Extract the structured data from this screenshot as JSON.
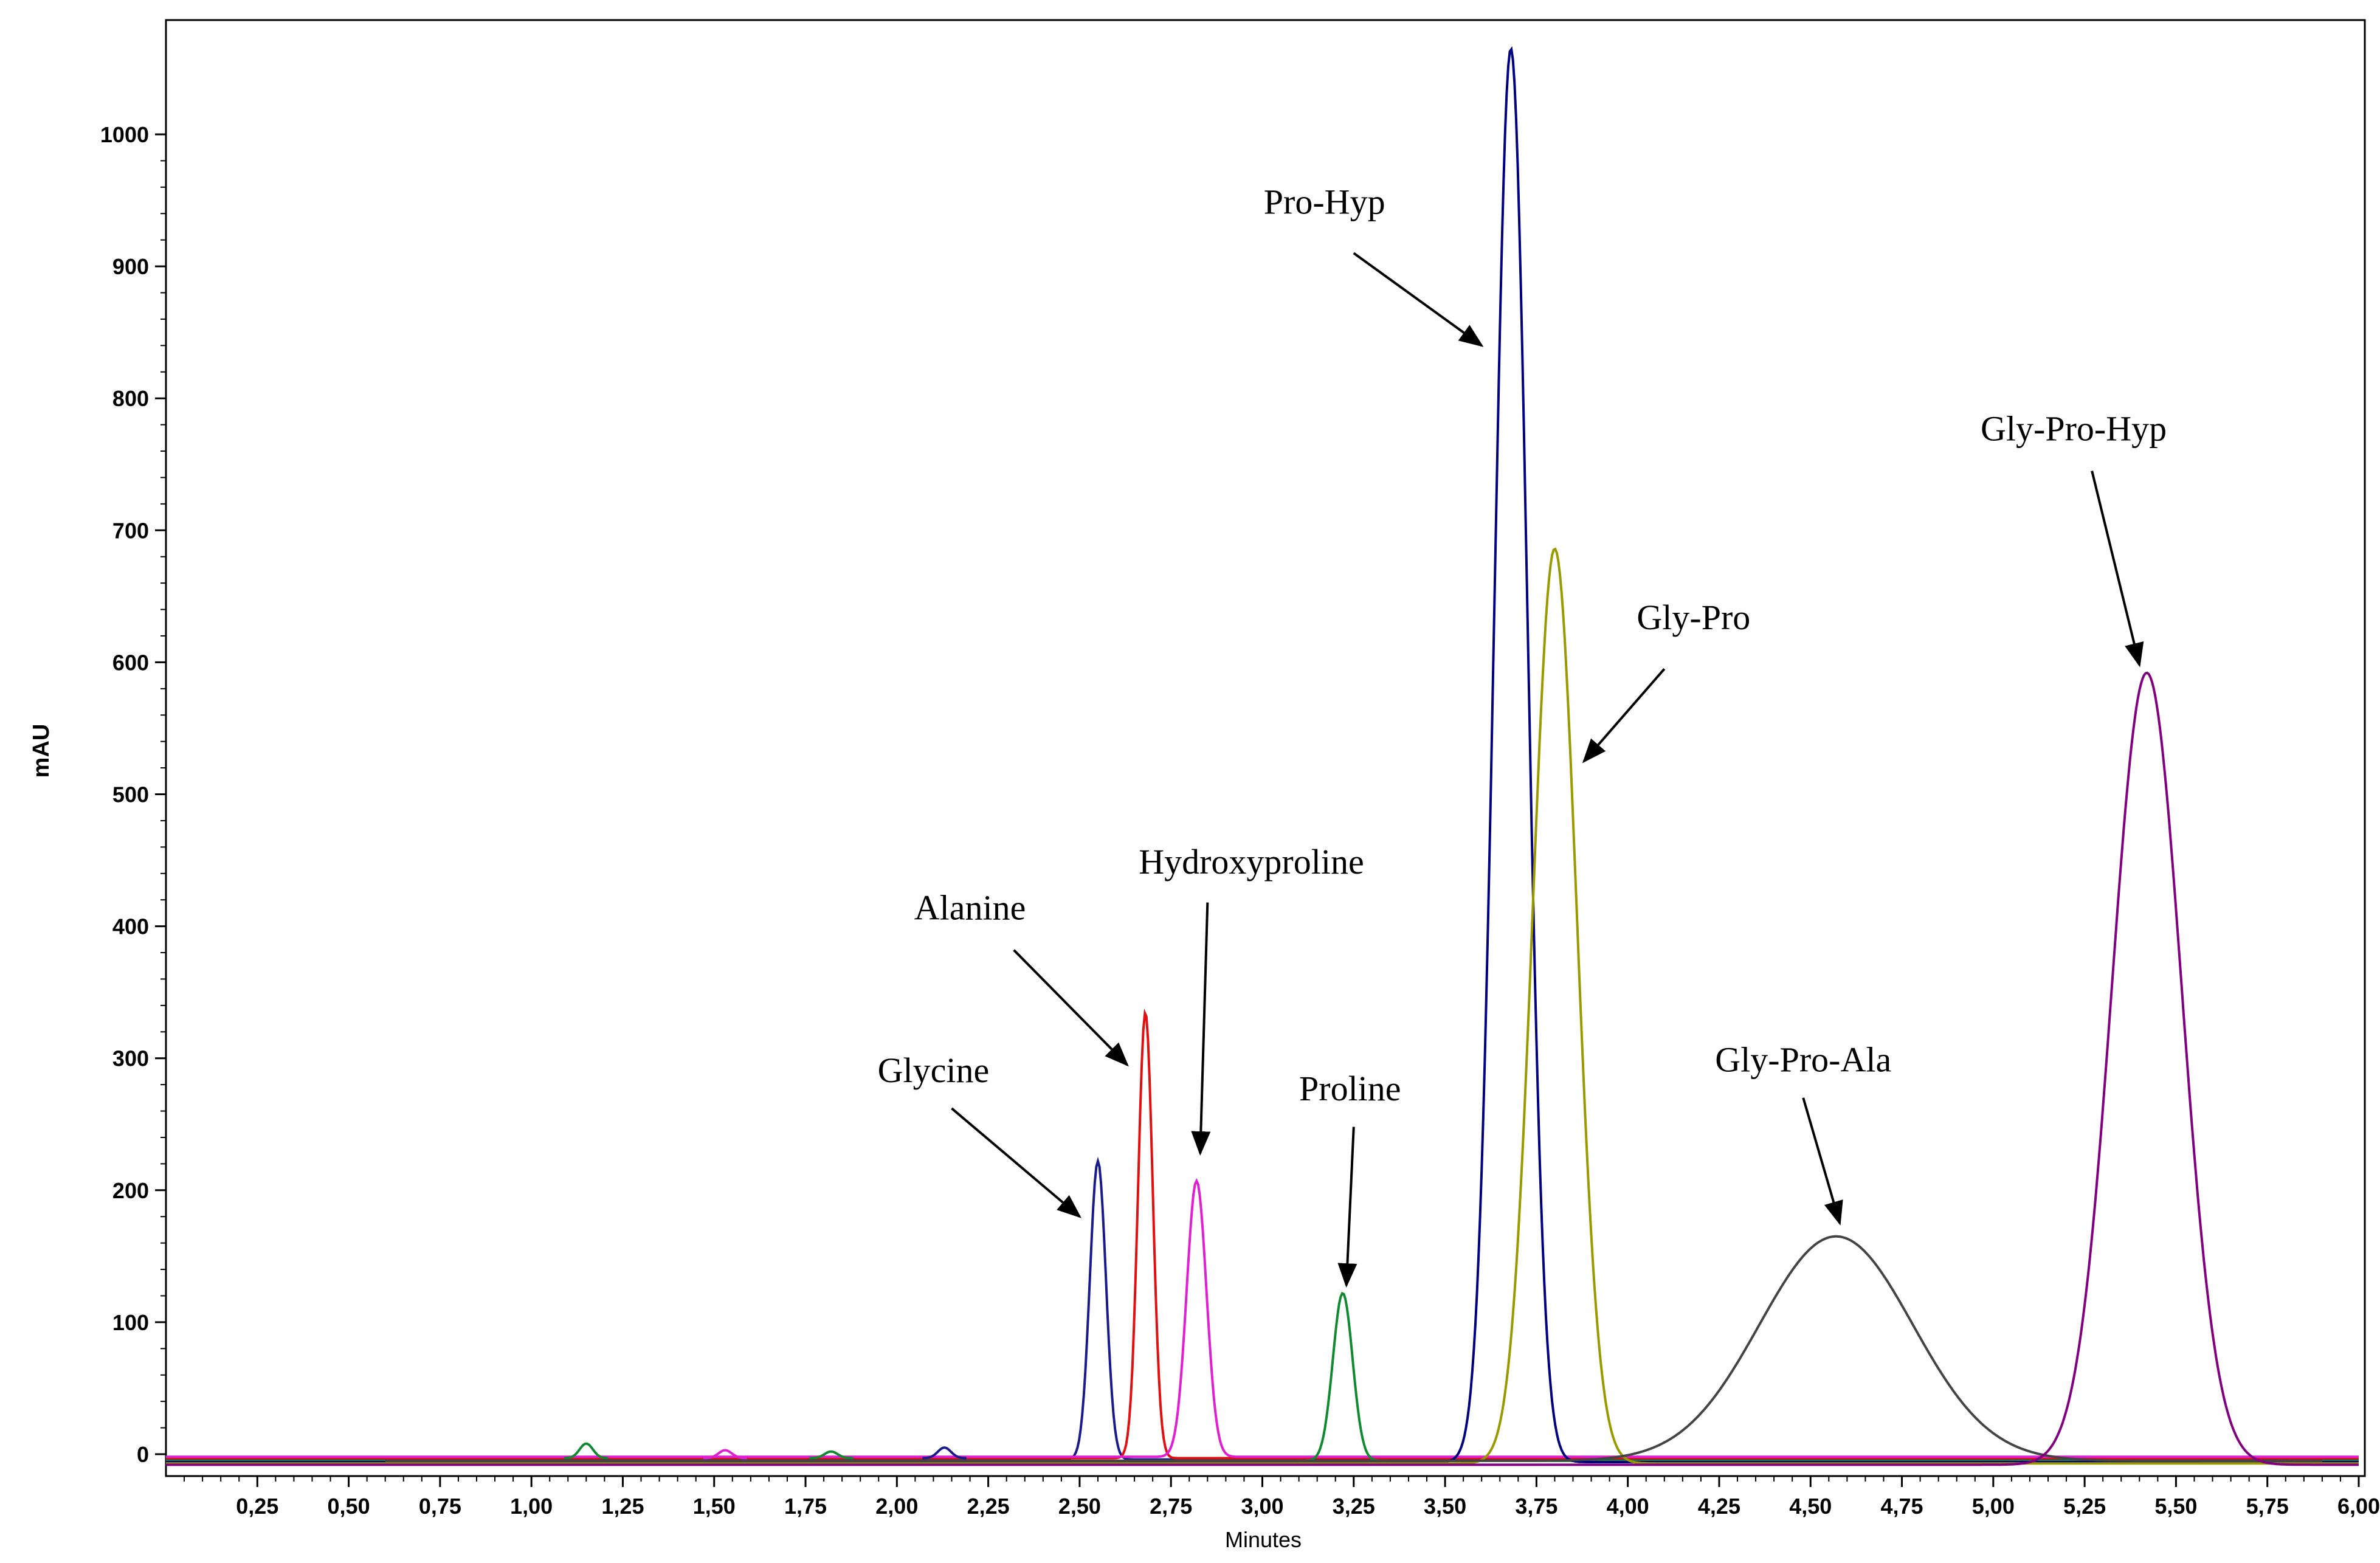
{
  "chart_data": {
    "type": "line",
    "title": "",
    "xlabel": "Minutes",
    "ylabel": "mAU",
    "xlim": [
      0,
      6.0
    ],
    "ylim": [
      -20,
      1080
    ],
    "grid": false,
    "legend": "none",
    "x_ticks": [
      0.25,
      0.5,
      0.75,
      1.0,
      1.25,
      1.5,
      1.75,
      2.0,
      2.25,
      2.5,
      2.75,
      3.0,
      3.25,
      3.5,
      3.75,
      4.0,
      4.25,
      4.5,
      4.75,
      5.0,
      5.25,
      5.5,
      5.75,
      6.0
    ],
    "x_tick_labels": [
      "0,25",
      "0,50",
      "0,75",
      "1,00",
      "1,25",
      "1,50",
      "1,75",
      "2,00",
      "2,25",
      "2,50",
      "2,75",
      "3,00",
      "3,25",
      "3,50",
      "3,75",
      "4,00",
      "4,25",
      "4,50",
      "4,75",
      "5,00",
      "5,25",
      "5,50",
      "5,75",
      "6,00"
    ],
    "y_ticks": [
      0,
      100,
      200,
      300,
      400,
      500,
      600,
      700,
      800,
      900,
      1000
    ],
    "y_tick_labels": [
      "0",
      "100",
      "200",
      "300",
      "400",
      "500",
      "600",
      "700",
      "800",
      "900",
      "1000"
    ],
    "series": [
      {
        "color": "#1a1a8c",
        "peak_x": 2.55,
        "peak_y": 222,
        "width": 0.022,
        "baseline": -4,
        "x_start": 0,
        "x_end": 6.0
      },
      {
        "color": "#e01010",
        "peak_x": 2.68,
        "peak_y": 335,
        "width": 0.02,
        "baseline": -3,
        "x_start": 0,
        "x_end": 6.0
      },
      {
        "color": "#e020d0",
        "peak_x": 2.82,
        "peak_y": 207,
        "width": 0.027,
        "baseline": -2,
        "x_start": 0,
        "x_end": 6.0
      },
      {
        "color": "#108a30",
        "peak_x": 3.22,
        "peak_y": 122,
        "width": 0.027,
        "baseline": -5,
        "x_start": 0,
        "x_end": 6.0
      },
      {
        "color": "#000080",
        "peak_x": 3.68,
        "peak_y": 1065,
        "width": 0.045,
        "baseline": -6,
        "x_start": 0,
        "x_end": 6.0
      },
      {
        "color": "#999900",
        "peak_x": 3.8,
        "peak_y": 686,
        "width": 0.06,
        "baseline": -7,
        "x_start": 0,
        "x_end": 6.0
      },
      {
        "color": "#444444",
        "peak_x": 4.57,
        "peak_y": 165,
        "width": 0.21,
        "baseline": -5,
        "x_start": 0.6,
        "x_end": 5.9
      },
      {
        "color": "#800080",
        "peak_x": 5.42,
        "peak_y": 592,
        "width": 0.095,
        "baseline": -8,
        "x_start": 0,
        "x_end": 6.0
      }
    ],
    "annotations": [
      {
        "text": "Glycine",
        "label_x": 2.1,
        "label_y": 282,
        "arrow_from": [
          2.15,
          262
        ],
        "arrow_to": [
          2.5,
          180
        ]
      },
      {
        "text": "Alanine",
        "label_x": 2.2,
        "label_y": 405,
        "arrow_from": [
          2.32,
          382
        ],
        "arrow_to": [
          2.63,
          295
        ]
      },
      {
        "text": "Hydroxyproline",
        "label_x": 2.97,
        "label_y": 440,
        "arrow_from": [
          2.85,
          418
        ],
        "arrow_to": [
          2.83,
          228
        ]
      },
      {
        "text": "Proline",
        "label_x": 3.24,
        "label_y": 268,
        "arrow_from": [
          3.25,
          248
        ],
        "arrow_to": [
          3.23,
          128
        ]
      },
      {
        "text": "Pro-Hyp",
        "label_x": 3.17,
        "label_y": 940,
        "arrow_from": [
          3.25,
          910
        ],
        "arrow_to": [
          3.6,
          840
        ]
      },
      {
        "text": "Gly-Pro",
        "label_x": 4.18,
        "label_y": 625,
        "arrow_from": [
          4.1,
          595
        ],
        "arrow_to": [
          3.88,
          525
        ]
      },
      {
        "text": "Gly-Pro-Ala",
        "label_x": 4.48,
        "label_y": 290,
        "arrow_from": [
          4.48,
          270
        ],
        "arrow_to": [
          4.58,
          175
        ]
      },
      {
        "text": "Gly-Pro-Hyp",
        "label_x": 5.22,
        "label_y": 768,
        "arrow_from": [
          5.27,
          745
        ],
        "arrow_to": [
          5.4,
          598
        ]
      }
    ],
    "minor_bumps": [
      {
        "color": "#108a30",
        "x": 1.15,
        "y": 8
      },
      {
        "color": "#1a1a8c",
        "x": 2.13,
        "y": 5
      },
      {
        "color": "#e020d0",
        "x": 1.53,
        "y": 3
      },
      {
        "color": "#108a30",
        "x": 1.82,
        "y": 2
      }
    ]
  }
}
